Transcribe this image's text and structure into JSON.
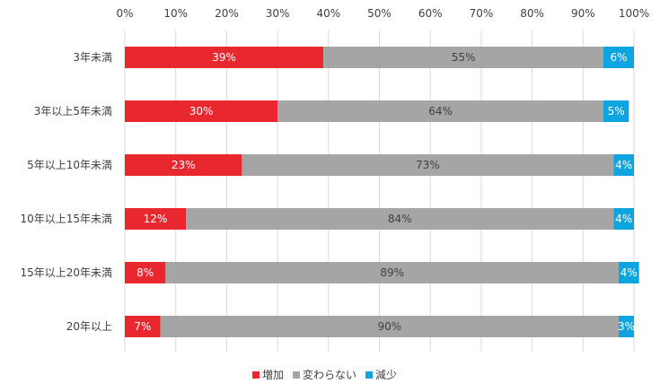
{
  "chart_data": {
    "type": "bar",
    "orientation": "horizontal",
    "stacked": true,
    "percent": true,
    "categories": [
      "3年未満",
      "3年以上5年未満",
      "5年以上10年未満",
      "10年以上15年未満",
      "15年以上20年未満",
      "20年以上"
    ],
    "series": [
      {
        "name": "増加",
        "values": [
          39,
          30,
          23,
          12,
          8,
          7
        ],
        "color": "#e8272f"
      },
      {
        "name": "変わらない",
        "values": [
          55,
          64,
          73,
          84,
          89,
          90
        ],
        "color": "#a5a5a5"
      },
      {
        "name": "減少",
        "values": [
          6,
          5,
          4,
          4,
          4,
          3
        ],
        "color": "#0ea4e0"
      }
    ],
    "xlim": [
      0,
      100
    ],
    "xticks": [
      "0%",
      "10%",
      "20%",
      "30%",
      "40%",
      "50%",
      "60%",
      "70%",
      "80%",
      "90%",
      "100%"
    ],
    "grid": true,
    "legend_position": "bottom",
    "title": "",
    "xlabel": "",
    "ylabel": ""
  }
}
